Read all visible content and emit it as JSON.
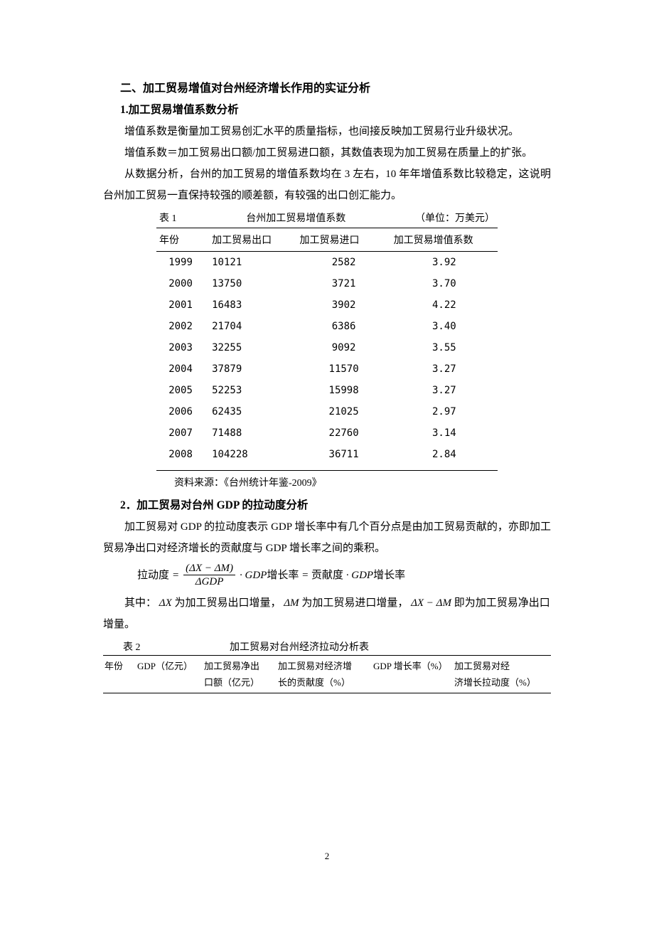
{
  "section": {
    "title": "二、加工贸易增值对台州经济增长作用的实证分析",
    "sub1": "1.加工贸易增值系数分析",
    "p1": "增值系数是衡量加工贸易创汇水平的质量指标，也间接反映加工贸易行业升级状况。",
    "p2": "增值系数＝加工贸易出口额/加工贸易进口额，其数值表现为加工贸易在质量上的扩张。",
    "p3": "从数据分析，台州的加工贸易的增值系数均在 3 左右，10 年年增值系数比较稳定，这说明台州加工贸易一直保持较强的顺差额，有较强的出口创汇能力。"
  },
  "table1": {
    "label": "表 1",
    "title": "台州加工贸易增值系数",
    "unit": "（单位：万美元）",
    "headers": {
      "year": "年份",
      "exp": "加工贸易出口",
      "imp": "加工贸易进口",
      "coef": "加工贸易增值系数"
    },
    "rows": [
      {
        "year": "1999",
        "exp": "10121",
        "imp": "2582",
        "coef": "3.92"
      },
      {
        "year": "2000",
        "exp": "13750",
        "imp": "3721",
        "coef": "3.70"
      },
      {
        "year": "2001",
        "exp": "16483",
        "imp": "3902",
        "coef": "4.22"
      },
      {
        "year": "2002",
        "exp": "21704",
        "imp": "6386",
        "coef": "3.40"
      },
      {
        "year": "2003",
        "exp": "32255",
        "imp": "9092",
        "coef": "3.55"
      },
      {
        "year": "2004",
        "exp": "37879",
        "imp": "11570",
        "coef": "3.27"
      },
      {
        "year": "2005",
        "exp": "52253",
        "imp": "15998",
        "coef": "3.27"
      },
      {
        "year": "2006",
        "exp": "62435",
        "imp": "21025",
        "coef": "2.97"
      },
      {
        "year": "2007",
        "exp": "71488",
        "imp": "22760",
        "coef": "3.14"
      },
      {
        "year": "2008",
        "exp": "104228",
        "imp": "36711",
        "coef": "2.84"
      }
    ],
    "source": "资料来源：《台州统计年鉴-2009》"
  },
  "section2": {
    "sub2": "2．加工贸易对台州 GDP 的拉动度分析",
    "p4": "加工贸易对 GDP 的拉动度表示 GDP 增长率中有几个百分点是由加工贸易贡献的，亦即加工贸易净出口对经济增长的贡献度与 GDP 增长率之间的乘积。",
    "formula": {
      "lead": "拉动度",
      "eq": "=",
      "num": "(ΔX − ΔM)",
      "den": "ΔGDP",
      "mid": "· GDP增长率 = 贡献度 · GDP增长率"
    },
    "p5a": "其中：",
    "dx": "ΔX",
    "p5b": " 为加工贸易出口增量，",
    "dm": "ΔM",
    "p5c": " 为加工贸易进口增量，",
    "dxm": "ΔX − ΔM",
    "p5d": " 即为加工贸易净出口增量。"
  },
  "table2": {
    "label": "表 2",
    "title": "加工贸易对台州经济拉动分析表",
    "headers": {
      "h1": "年份",
      "h2": "GDP（亿元）",
      "h3a": "加工贸易净出",
      "h3b": "口额（亿元）",
      "h4a": "加工贸易对经济增",
      "h4b": "长的贡献度（%）",
      "h5": "GDP 增长率（%）",
      "h6a": "加工贸易对经",
      "h6b": "济增长拉动度（%）"
    }
  },
  "pagenum": "2"
}
